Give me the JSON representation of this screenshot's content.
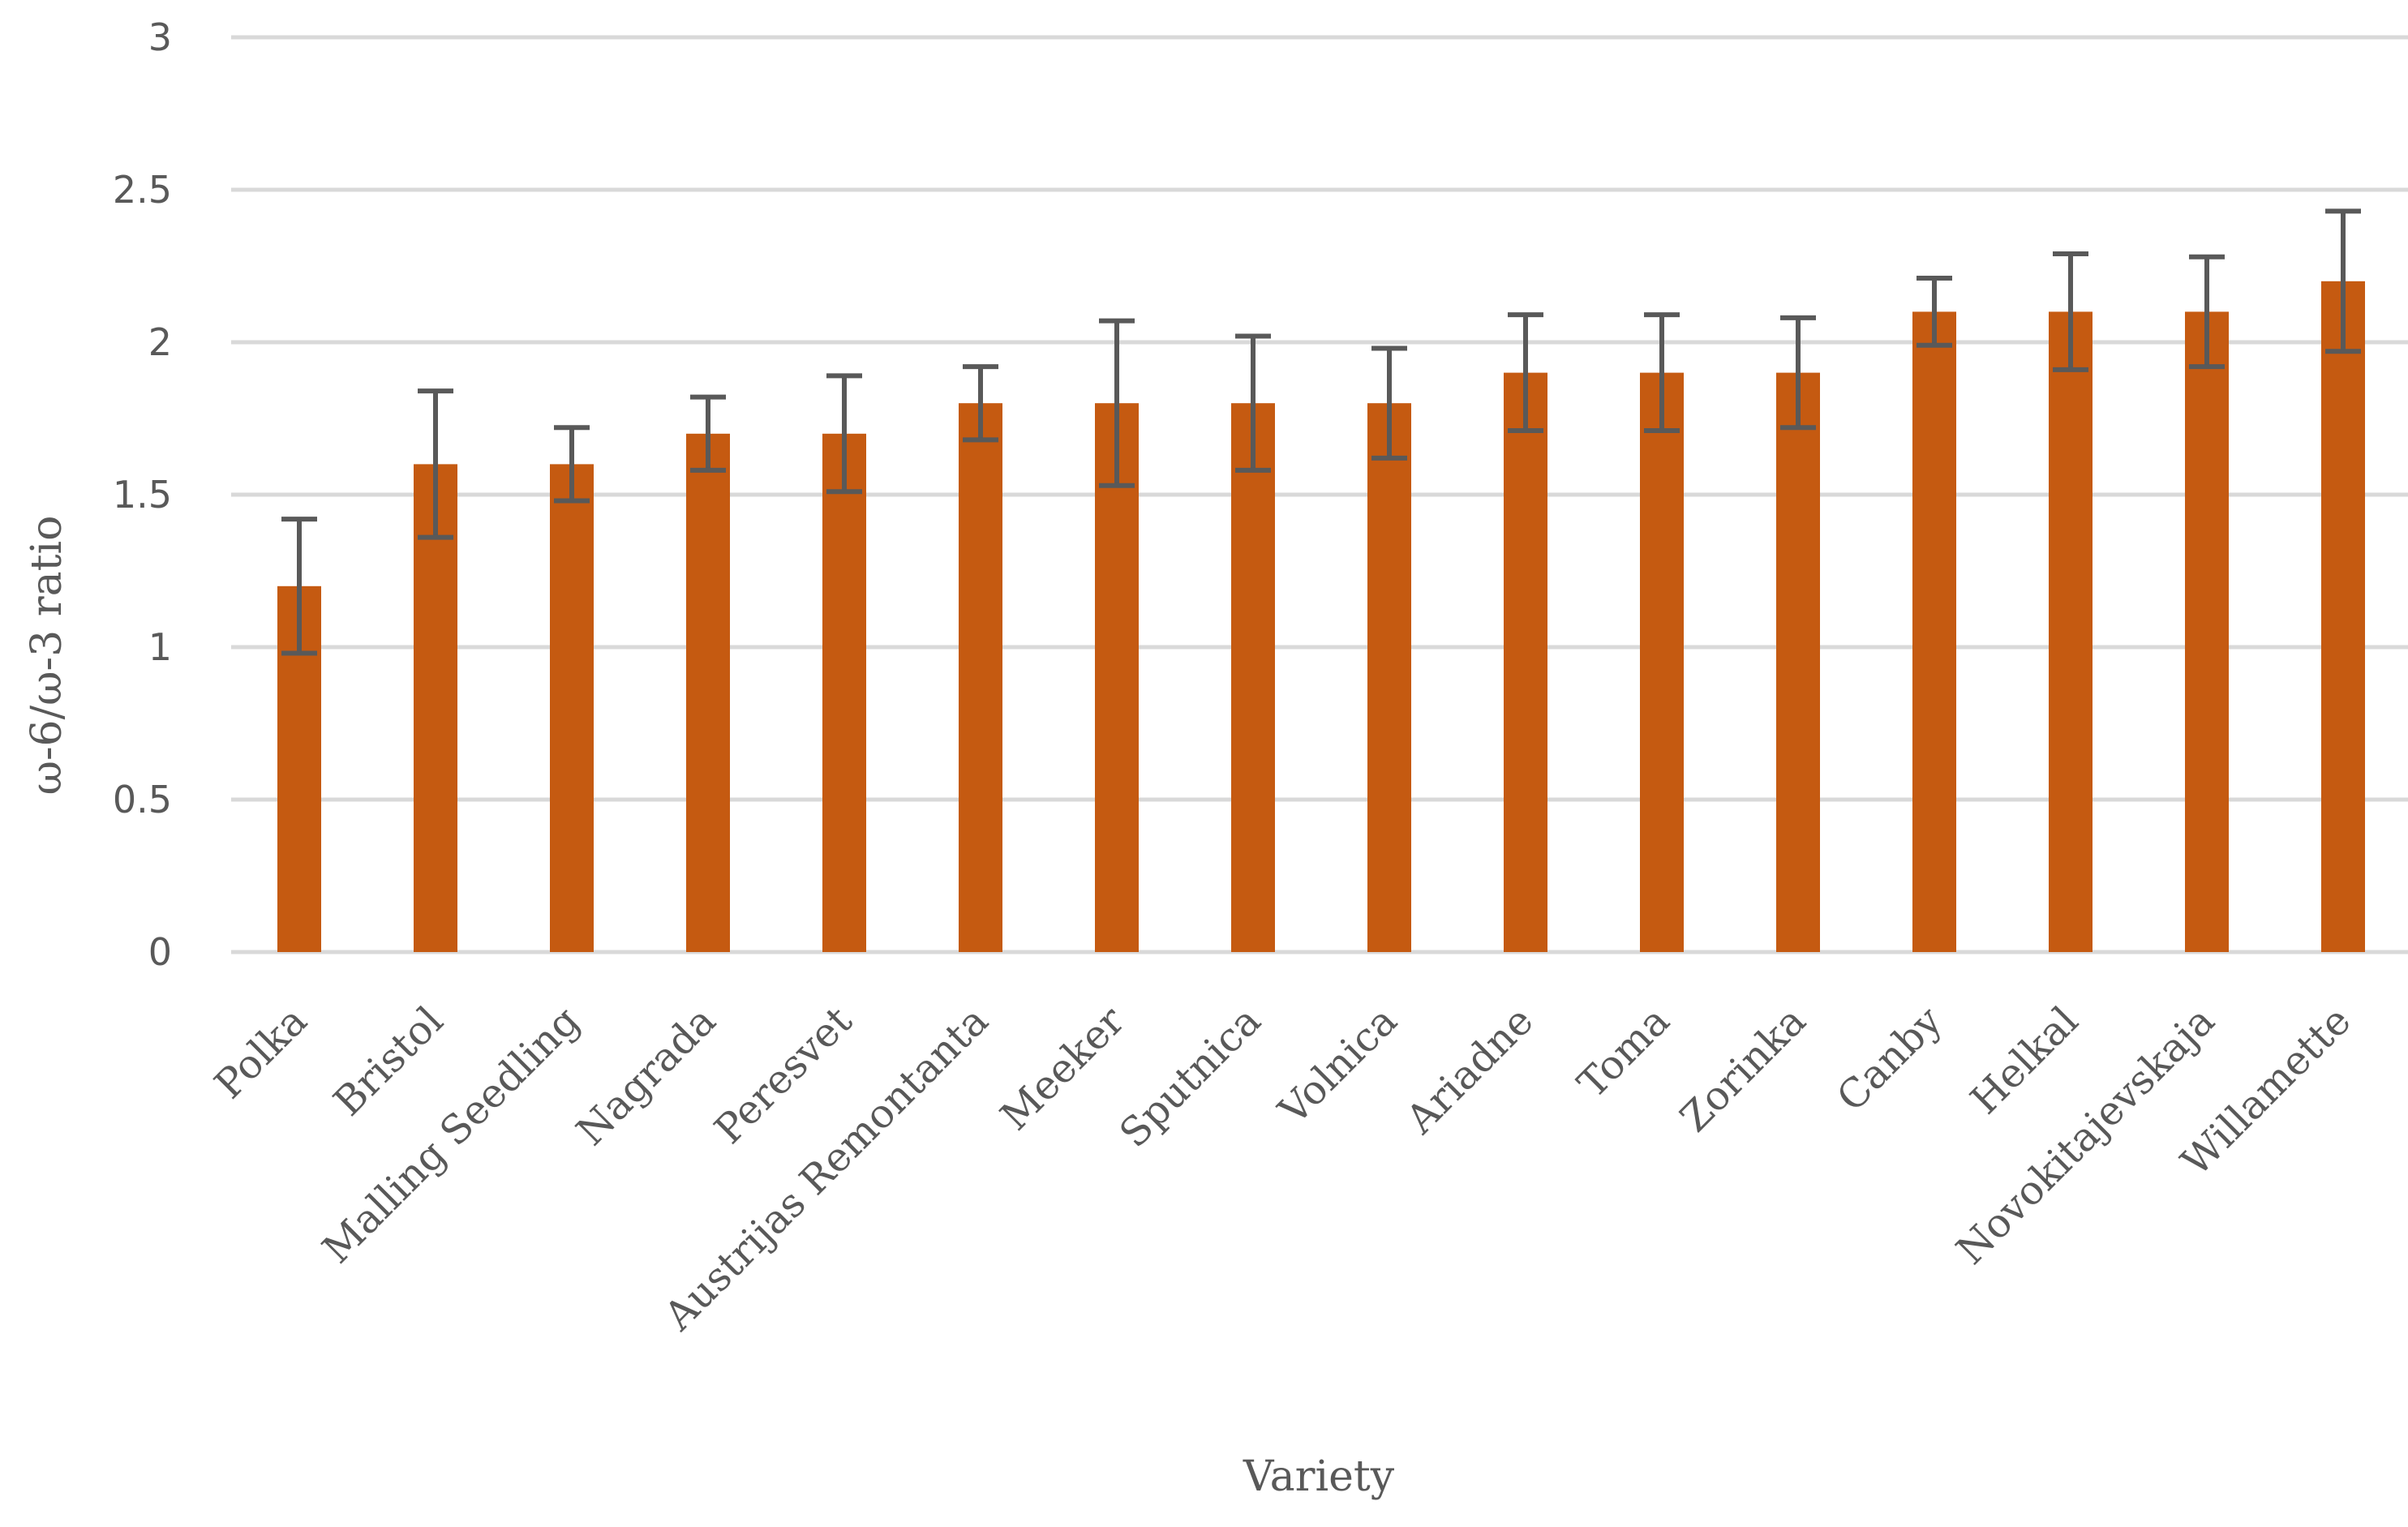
{
  "chart_data": {
    "type": "bar",
    "title": "",
    "xlabel": "Variety",
    "ylabel": "ω-6/ω-3 ratio",
    "ylim": [
      0,
      3
    ],
    "yticks": [
      "0",
      "0.5",
      "1",
      "1.5",
      "2",
      "2.5",
      "3"
    ],
    "grid": true,
    "legend": "none",
    "categories": [
      "Polka",
      "Bristol",
      "Malling Seedling",
      "Nagrada",
      "Peresvet",
      "Austrijas Remontanta",
      "Meeker",
      "Sputnica",
      "Volnica",
      "Ariadne",
      "Toma",
      "Zorinka",
      "Canby",
      "Helkal",
      "Novokitajevskaja",
      "Willamette"
    ],
    "values": [
      1.2,
      1.6,
      1.6,
      1.7,
      1.7,
      1.8,
      1.8,
      1.8,
      1.8,
      1.9,
      1.9,
      1.9,
      2.1,
      2.1,
      2.1,
      2.2
    ],
    "error": [
      0.22,
      0.24,
      0.12,
      0.12,
      0.19,
      0.12,
      0.27,
      0.22,
      0.18,
      0.19,
      0.19,
      0.18,
      0.11,
      0.19,
      0.18,
      0.23
    ],
    "colors": {
      "bar": "#C55A11",
      "error_bar": "#595959",
      "grid": "#D9D9D9",
      "text": "#595959"
    }
  }
}
